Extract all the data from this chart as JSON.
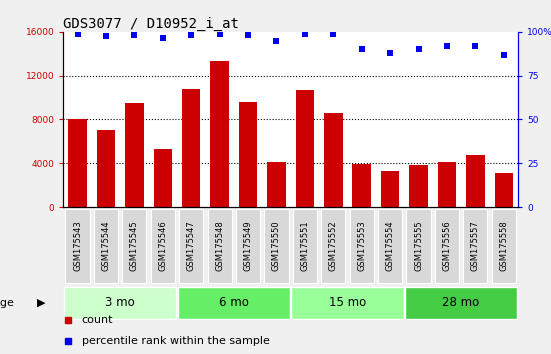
{
  "title": "GDS3077 / D10952_i_at",
  "samples": [
    "GSM175543",
    "GSM175544",
    "GSM175545",
    "GSM175546",
    "GSM175547",
    "GSM175548",
    "GSM175549",
    "GSM175550",
    "GSM175551",
    "GSM175552",
    "GSM175553",
    "GSM175554",
    "GSM175555",
    "GSM175556",
    "GSM175557",
    "GSM175558"
  ],
  "bar_values": [
    8000,
    7000,
    9500,
    5300,
    10800,
    13300,
    9600,
    4100,
    10700,
    8600,
    3900,
    3300,
    3800,
    4100,
    4800,
    3100
  ],
  "percentile_values": [
    98.5,
    97.5,
    98.0,
    96.5,
    98.0,
    99.0,
    98.0,
    95.0,
    98.5,
    99.0,
    90.0,
    88.0,
    90.0,
    92.0,
    92.0,
    87.0
  ],
  "bar_color": "#cc0000",
  "dot_color": "#0000ee",
  "left_ylim": [
    0,
    16000
  ],
  "right_ylim": [
    0,
    100
  ],
  "left_yticks": [
    0,
    4000,
    8000,
    12000,
    16000
  ],
  "right_yticks": [
    0,
    25,
    50,
    75,
    100
  ],
  "right_yticklabels": [
    "0",
    "25",
    "50",
    "75",
    "100%"
  ],
  "groups": [
    {
      "label": "3 mo",
      "start": 0,
      "end": 4,
      "color": "#ccffcc"
    },
    {
      "label": "6 mo",
      "start": 4,
      "end": 8,
      "color": "#66ee66"
    },
    {
      "label": "15 mo",
      "start": 8,
      "end": 12,
      "color": "#99ff99"
    },
    {
      "label": "28 mo",
      "start": 12,
      "end": 16,
      "color": "#44cc44"
    }
  ],
  "age_label": "age",
  "legend_bar_label": "count",
  "legend_dot_label": "percentile rank within the sample",
  "fig_bg_color": "#f0f0f0",
  "plot_bg_color": "#ffffff",
  "ticklabel_bg_color": "#cccccc",
  "group_bg_color": "#aaaaaa",
  "title_fontsize": 10,
  "tick_fontsize": 6.5,
  "label_fontsize": 8,
  "sample_fontsize": 6.0
}
